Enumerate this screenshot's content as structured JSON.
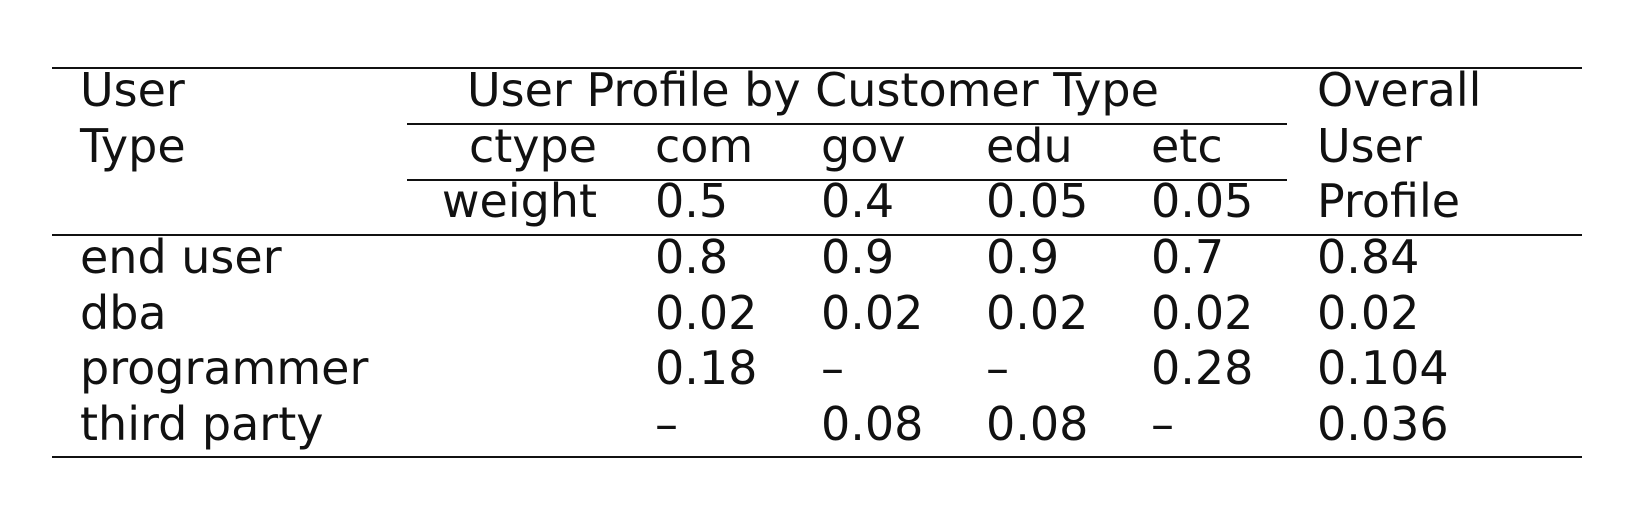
{
  "header": {
    "user_type_line1": "User",
    "user_type_line2": "Type",
    "group_title": "User Profile by Customer Type",
    "overall_line1": "Overall",
    "overall_line2": "User",
    "overall_line3": "Profile",
    "ctype_label": "ctype",
    "weight_label": "weight"
  },
  "customer_types": [
    "com",
    "gov",
    "edu",
    "etc"
  ],
  "weights": [
    "0.5",
    "0.4",
    "0.05",
    "0.05"
  ],
  "rows": [
    {
      "user_type": "end user",
      "values": [
        "0.8",
        "0.9",
        "0.9",
        "0.7"
      ],
      "overall": "0.84"
    },
    {
      "user_type": "dba",
      "values": [
        "0.02",
        "0.02",
        "0.02",
        "0.02"
      ],
      "overall": "0.02"
    },
    {
      "user_type": "programmer",
      "values": [
        "0.18",
        "–",
        "–",
        "0.28"
      ],
      "overall": "0.104"
    },
    {
      "user_type": "third party",
      "values": [
        "–",
        "0.08",
        "0.08",
        "–"
      ],
      "overall": "0.036"
    }
  ]
}
